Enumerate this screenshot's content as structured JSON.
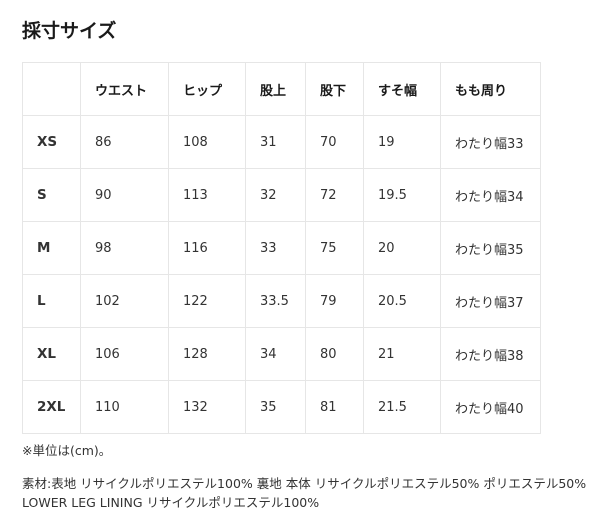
{
  "title": "採寸サイズ",
  "table": {
    "headers": [
      "",
      "ウエスト",
      "ヒップ",
      "股上",
      "股下",
      "すそ幅",
      "もも周り"
    ],
    "rows": [
      [
        "XS",
        "86",
        "108",
        "31",
        "70",
        "19",
        "わたり幅33"
      ],
      [
        "S",
        "90",
        "113",
        "32",
        "72",
        "19.5",
        "わたり幅34"
      ],
      [
        "M",
        "98",
        "116",
        "33",
        "75",
        "20",
        "わたり幅35"
      ],
      [
        "L",
        "102",
        "122",
        "33.5",
        "79",
        "20.5",
        "わたり幅37"
      ],
      [
        "XL",
        "106",
        "128",
        "34",
        "80",
        "21",
        "わたり幅38"
      ],
      [
        "2XL",
        "110",
        "132",
        "35",
        "81",
        "21.5",
        "わたり幅40"
      ]
    ]
  },
  "note": "※単位は(cm)。",
  "material": "素材:表地 リサイクルポリエステル100% 裏地 本体 リサイクルポリエステル50% ポリエステル50% LOWER LEG LINING リサイクルポリエステル100%"
}
